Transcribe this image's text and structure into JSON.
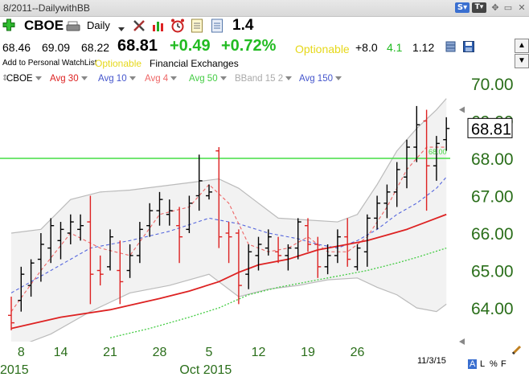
{
  "window": {
    "title": "8/2011--DailywithBB"
  },
  "toolbar": {
    "symbol": "CBOE",
    "period": "Daily",
    "last_value": "1.4"
  },
  "quote": {
    "open": "68.46",
    "high": "69.09",
    "low": "68.22",
    "last": "68.81",
    "change": "+0.49",
    "change_pct": "+0.72%",
    "optionable_label": "Optionable",
    "stat1": "+8.0",
    "stat2": "4.1",
    "stat3": "1.12"
  },
  "info": {
    "watchlist_label": "Add to Personal WatchList",
    "optionable_label": "Optionable",
    "exchanges_label": "Financial Exchanges"
  },
  "legend": [
    {
      "label": "CBOE",
      "color": "#000000"
    },
    {
      "label": "Avg 30",
      "color": "#dd2222"
    },
    {
      "label": "Avg 10",
      "color": "#4455cc"
    },
    {
      "label": "Avg 4",
      "color": "#ee6666"
    },
    {
      "label": "Avg 50",
      "color": "#44cc44"
    },
    {
      "label": "BBand 15 2",
      "color": "#aaaaaa"
    },
    {
      "label": "Avg 150",
      "color": "#4455cc"
    }
  ],
  "footer": {
    "date": "11/3/15",
    "ctrl_a": "A",
    "ctrl_l": "L",
    "ctrl_pct": "%",
    "ctrl_f": "F"
  },
  "colors": {
    "up": "#000000",
    "down": "#dd2222",
    "avg30": "#dd2222",
    "avg4": "#ee6666",
    "avg10": "#5566dd",
    "avg50": "#44cc44",
    "bband": "#bbbbbb",
    "hline": "#44dd44",
    "axis_text": "#2a6e1a"
  },
  "chart_data": {
    "type": "ohlc",
    "y_ticks": [
      "70.00",
      "69.00",
      "68.00",
      "67.00",
      "66.00",
      "65.00",
      "64.00"
    ],
    "ylim": [
      63.2,
      70.6
    ],
    "x_ticks": [
      {
        "label": "8",
        "index": 1
      },
      {
        "label": "14",
        "index": 5
      },
      {
        "label": "21",
        "index": 10
      },
      {
        "label": "28",
        "index": 15
      },
      {
        "label": "5",
        "index": 20
      },
      {
        "label": "12",
        "index": 25
      },
      {
        "label": "19",
        "index": 30
      },
      {
        "label": "26",
        "index": 35
      }
    ],
    "month_labels": [
      {
        "label": "2015",
        "index": 0
      },
      {
        "label": "Oct 2015",
        "index": 18
      }
    ],
    "last_price": 68.81,
    "horizontal_line": {
      "value": 68.0,
      "label": "68.00"
    },
    "bars": [
      {
        "o": 63.8,
        "h": 64.3,
        "l": 63.4,
        "c": 63.6
      },
      {
        "o": 64.2,
        "h": 65.1,
        "l": 63.9,
        "c": 64.9
      },
      {
        "o": 64.6,
        "h": 65.3,
        "l": 64.3,
        "c": 65.2
      },
      {
        "o": 65.3,
        "h": 66.0,
        "l": 64.7,
        "c": 65.7
      },
      {
        "o": 65.6,
        "h": 66.4,
        "l": 65.2,
        "c": 66.2
      },
      {
        "o": 65.8,
        "h": 66.3,
        "l": 65.3,
        "c": 66.1
      },
      {
        "o": 66.0,
        "h": 66.5,
        "l": 65.7,
        "c": 66.3
      },
      {
        "o": 66.1,
        "h": 66.5,
        "l": 65.8,
        "c": 66.2
      },
      {
        "o": 66.3,
        "h": 67.0,
        "l": 64.1,
        "c": 64.9
      },
      {
        "o": 65.0,
        "h": 65.4,
        "l": 64.6,
        "c": 64.9
      },
      {
        "o": 65.1,
        "h": 66.1,
        "l": 65.0,
        "c": 65.9
      },
      {
        "o": 65.0,
        "h": 65.8,
        "l": 64.1,
        "c": 64.7
      },
      {
        "o": 65.0,
        "h": 65.7,
        "l": 64.8,
        "c": 65.4
      },
      {
        "o": 65.4,
        "h": 66.3,
        "l": 65.2,
        "c": 66.1
      },
      {
        "o": 66.2,
        "h": 66.8,
        "l": 65.9,
        "c": 66.6
      },
      {
        "o": 66.6,
        "h": 67.1,
        "l": 66.2,
        "c": 66.9
      },
      {
        "o": 66.5,
        "h": 66.9,
        "l": 66.2,
        "c": 66.6
      },
      {
        "o": 66.2,
        "h": 66.7,
        "l": 65.2,
        "c": 65.9
      },
      {
        "o": 66.1,
        "h": 67.0,
        "l": 66.0,
        "c": 66.8
      },
      {
        "o": 67.0,
        "h": 68.1,
        "l": 66.6,
        "c": 67.4
      },
      {
        "o": 67.0,
        "h": 67.3,
        "l": 66.9,
        "c": 67.1
      },
      {
        "o": 68.2,
        "h": 68.3,
        "l": 65.6,
        "c": 65.9
      },
      {
        "o": 66.0,
        "h": 66.3,
        "l": 65.2,
        "c": 65.9
      },
      {
        "o": 66.0,
        "h": 66.1,
        "l": 64.1,
        "c": 64.6
      },
      {
        "o": 64.9,
        "h": 65.7,
        "l": 64.5,
        "c": 65.5
      },
      {
        "o": 65.4,
        "h": 65.9,
        "l": 65.0,
        "c": 65.7
      },
      {
        "o": 65.6,
        "h": 66.1,
        "l": 65.4,
        "c": 65.9
      },
      {
        "o": 65.5,
        "h": 65.9,
        "l": 65.2,
        "c": 65.4
      },
      {
        "o": 65.4,
        "h": 65.7,
        "l": 65.0,
        "c": 65.6
      },
      {
        "o": 65.6,
        "h": 66.4,
        "l": 65.3,
        "c": 66.3
      },
      {
        "o": 66.2,
        "h": 66.4,
        "l": 65.5,
        "c": 65.7
      },
      {
        "o": 65.7,
        "h": 65.9,
        "l": 64.8,
        "c": 65.1
      },
      {
        "o": 65.1,
        "h": 65.7,
        "l": 64.9,
        "c": 65.4
      },
      {
        "o": 65.4,
        "h": 66.1,
        "l": 65.2,
        "c": 65.9
      },
      {
        "o": 65.9,
        "h": 66.4,
        "l": 65.1,
        "c": 65.3
      },
      {
        "o": 65.1,
        "h": 65.7,
        "l": 65.0,
        "c": 65.6
      },
      {
        "o": 65.5,
        "h": 66.5,
        "l": 65.1,
        "c": 66.4
      },
      {
        "o": 66.4,
        "h": 67.0,
        "l": 66.1,
        "c": 66.8
      },
      {
        "o": 66.8,
        "h": 67.3,
        "l": 66.4,
        "c": 67.1
      },
      {
        "o": 67.1,
        "h": 67.9,
        "l": 66.7,
        "c": 67.7
      },
      {
        "o": 67.5,
        "h": 68.5,
        "l": 67.2,
        "c": 68.3
      },
      {
        "o": 68.3,
        "h": 69.4,
        "l": 67.9,
        "c": 68.9
      },
      {
        "o": 69.0,
        "h": 69.3,
        "l": 66.6,
        "c": 67.8
      },
      {
        "o": 67.8,
        "h": 68.6,
        "l": 67.4,
        "c": 68.4
      },
      {
        "o": 68.5,
        "h": 69.1,
        "l": 68.2,
        "c": 68.8
      }
    ],
    "series": [
      {
        "name": "Avg 30",
        "style": "solid",
        "values": [
          [
            0,
            63.45
          ],
          [
            5,
            63.75
          ],
          [
            10,
            63.95
          ],
          [
            15,
            64.25
          ],
          [
            18,
            64.45
          ],
          [
            21,
            64.7
          ],
          [
            23,
            64.95
          ],
          [
            25,
            65.15
          ],
          [
            28,
            65.3
          ],
          [
            31,
            65.55
          ],
          [
            34,
            65.7
          ],
          [
            36,
            65.8
          ],
          [
            38,
            65.95
          ],
          [
            40,
            66.1
          ],
          [
            42,
            66.3
          ],
          [
            44,
            66.5
          ]
        ]
      },
      {
        "name": "Avg 50",
        "style": "dotted",
        "values": [
          [
            10,
            63.2
          ],
          [
            14,
            63.45
          ],
          [
            18,
            63.75
          ],
          [
            21,
            64.0
          ],
          [
            24,
            64.35
          ],
          [
            27,
            64.55
          ],
          [
            30,
            64.7
          ],
          [
            33,
            64.85
          ],
          [
            36,
            65.0
          ],
          [
            39,
            65.2
          ],
          [
            41,
            65.35
          ],
          [
            44,
            65.6
          ]
        ]
      },
      {
        "name": "Avg 10",
        "style": "dashed",
        "values": [
          [
            0,
            64.4
          ],
          [
            4,
            65.0
          ],
          [
            8,
            65.6
          ],
          [
            12,
            65.8
          ],
          [
            16,
            66.05
          ],
          [
            20,
            66.4
          ],
          [
            23,
            66.25
          ],
          [
            26,
            66.0
          ],
          [
            29,
            65.85
          ],
          [
            31,
            65.7
          ],
          [
            33,
            65.6
          ],
          [
            35,
            65.8
          ],
          [
            37,
            66.1
          ],
          [
            39,
            66.5
          ],
          [
            41,
            66.8
          ],
          [
            43,
            67.2
          ],
          [
            44,
            67.5
          ]
        ]
      },
      {
        "name": "Avg 4",
        "style": "dashed",
        "values": [
          [
            0,
            63.9
          ],
          [
            3,
            65.0
          ],
          [
            6,
            66.0
          ],
          [
            9,
            65.6
          ],
          [
            12,
            65.4
          ],
          [
            15,
            66.5
          ],
          [
            18,
            66.7
          ],
          [
            20,
            67.3
          ],
          [
            22,
            66.8
          ],
          [
            24,
            65.7
          ],
          [
            26,
            65.5
          ],
          [
            28,
            65.6
          ],
          [
            30,
            65.9
          ],
          [
            32,
            65.5
          ],
          [
            34,
            65.5
          ],
          [
            36,
            65.9
          ],
          [
            38,
            66.7
          ],
          [
            40,
            67.7
          ],
          [
            42,
            68.3
          ],
          [
            44,
            68.3
          ]
        ]
      },
      {
        "name": "BBand upper",
        "style": "band",
        "values": [
          [
            0,
            66.0
          ],
          [
            3,
            66.1
          ],
          [
            6,
            66.9
          ],
          [
            9,
            67.1
          ],
          [
            12,
            67.15
          ],
          [
            15,
            67.25
          ],
          [
            18,
            67.35
          ],
          [
            21,
            67.45
          ],
          [
            23,
            67.2
          ],
          [
            25,
            66.8
          ],
          [
            27,
            66.4
          ],
          [
            30,
            66.35
          ],
          [
            33,
            66.3
          ],
          [
            35,
            66.5
          ],
          [
            37,
            67.3
          ],
          [
            39,
            68.2
          ],
          [
            41,
            68.8
          ],
          [
            43,
            69.3
          ],
          [
            44,
            69.6
          ]
        ]
      },
      {
        "name": "BBand lower",
        "style": "band",
        "values": [
          [
            0,
            62.9
          ],
          [
            4,
            63.3
          ],
          [
            8,
            63.9
          ],
          [
            12,
            64.4
          ],
          [
            16,
            64.6
          ],
          [
            20,
            64.9
          ],
          [
            23,
            64.3
          ],
          [
            26,
            64.5
          ],
          [
            29,
            64.6
          ],
          [
            32,
            64.75
          ],
          [
            35,
            64.8
          ],
          [
            37,
            64.55
          ],
          [
            39,
            64.35
          ],
          [
            41,
            64.0
          ],
          [
            43,
            63.9
          ],
          [
            44,
            64.1
          ]
        ]
      }
    ]
  }
}
